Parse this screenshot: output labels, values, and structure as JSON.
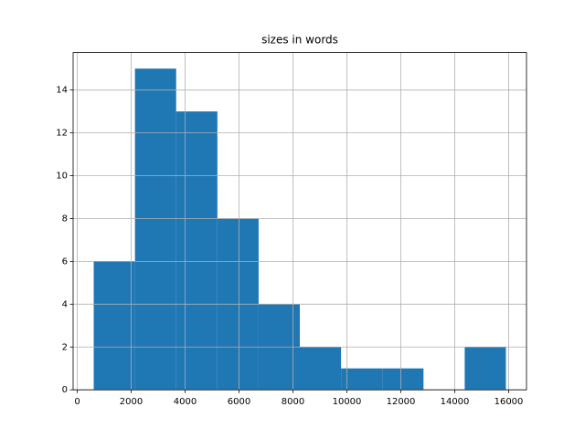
{
  "chart_data": {
    "type": "histogram",
    "title": "sizes in words",
    "bins": [
      611,
      2140,
      3668,
      5197,
      6726,
      8254,
      9783,
      11312,
      12841,
      14369,
      15897
    ],
    "counts": [
      6,
      15,
      13,
      8,
      4,
      2,
      1,
      1,
      0,
      2
    ],
    "color": "#1f77b4",
    "xlim": [
      -153,
      16661
    ],
    "xticks": [
      0,
      2000,
      4000,
      6000,
      8000,
      10000,
      12000,
      14000,
      16000
    ],
    "ylim": [
      0,
      15.75
    ],
    "yticks": [
      0,
      2,
      4,
      6,
      8,
      10,
      12,
      14
    ],
    "grid": true
  }
}
